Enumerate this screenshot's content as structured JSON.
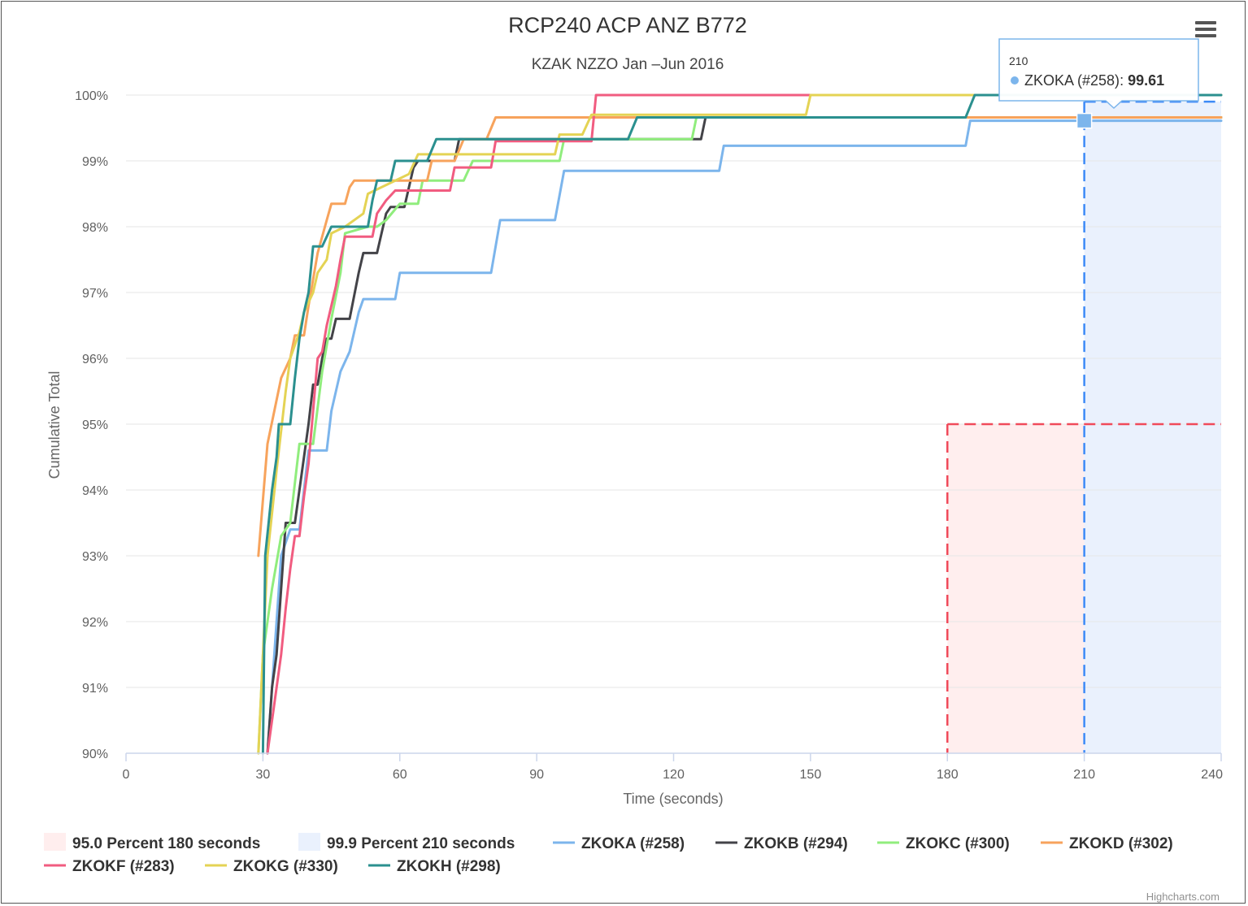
{
  "chart_data": {
    "type": "line",
    "title": "RCP240 ACP ANZ B772",
    "subtitle": "KZAK NZZO Jan –Jun 2016",
    "xlabel": "Time (seconds)",
    "ylabel": "Cumulative Total",
    "xlim": [
      0,
      240
    ],
    "ylim": [
      90,
      100
    ],
    "x_ticks": [
      "0",
      "30",
      "60",
      "90",
      "120",
      "150",
      "180",
      "210",
      "240"
    ],
    "y_ticks": [
      "90%",
      "91%",
      "92%",
      "93%",
      "94%",
      "95%",
      "96%",
      "97%",
      "98%",
      "99%",
      "100%"
    ],
    "grid": true,
    "legend_position": "bottom",
    "bands": [
      {
        "name": "95.0 Percent 180 seconds",
        "x_from": 180,
        "x_to": 240,
        "y_from": 90,
        "y_to": 95,
        "color": "#ffeeee",
        "line_color": "#f04a5a"
      },
      {
        "name": "99.9 Percent 210 seconds",
        "x_from": 210,
        "x_to": 240,
        "y_from": 90,
        "y_to": 99.9,
        "color": "#eaf1fd",
        "line_color": "#3d8af7"
      }
    ],
    "series": [
      {
        "name": "ZKOKA (#258)",
        "color": "#7cb5ec",
        "points": [
          [
            31,
            90
          ],
          [
            32,
            91
          ],
          [
            33,
            92
          ],
          [
            34,
            93
          ],
          [
            36,
            93.4
          ],
          [
            38,
            93.4
          ],
          [
            39,
            94
          ],
          [
            40,
            94.6
          ],
          [
            42,
            94.6
          ],
          [
            44,
            94.6
          ],
          [
            45,
            95.2
          ],
          [
            47,
            95.8
          ],
          [
            49,
            96.1
          ],
          [
            51,
            96.7
          ],
          [
            52,
            96.9
          ],
          [
            59,
            96.9
          ],
          [
            60,
            97.3
          ],
          [
            80,
            97.3
          ],
          [
            82,
            98.1
          ],
          [
            94,
            98.1
          ],
          [
            96,
            98.85
          ],
          [
            130,
            98.85
          ],
          [
            131,
            99.23
          ],
          [
            184,
            99.23
          ],
          [
            185,
            99.61
          ],
          [
            240,
            99.61
          ]
        ]
      },
      {
        "name": "ZKOKB (#294)",
        "color": "#434348",
        "points": [
          [
            31,
            90
          ],
          [
            32,
            91
          ],
          [
            33,
            91.5
          ],
          [
            34,
            92.5
          ],
          [
            35,
            93.5
          ],
          [
            37,
            93.5
          ],
          [
            38,
            94
          ],
          [
            39,
            94.5
          ],
          [
            40,
            95
          ],
          [
            41,
            95.6
          ],
          [
            42,
            95.6
          ],
          [
            43,
            96
          ],
          [
            44,
            96.3
          ],
          [
            45,
            96.3
          ],
          [
            46,
            96.6
          ],
          [
            49,
            96.6
          ],
          [
            51,
            97.3
          ],
          [
            52,
            97.6
          ],
          [
            55,
            97.6
          ],
          [
            56,
            97.9
          ],
          [
            57,
            98.2
          ],
          [
            58,
            98.3
          ],
          [
            61,
            98.3
          ],
          [
            62,
            98.6
          ],
          [
            63,
            98.9
          ],
          [
            64,
            99
          ],
          [
            72,
            99
          ],
          [
            73,
            99.33
          ],
          [
            126,
            99.33
          ],
          [
            127,
            99.66
          ],
          [
            240,
            99.66
          ]
        ]
      },
      {
        "name": "ZKOKC (#300)",
        "color": "#90ed7d",
        "points": [
          [
            29,
            90
          ],
          [
            30,
            91.5
          ],
          [
            32,
            92.5
          ],
          [
            34,
            93.3
          ],
          [
            36,
            93.5
          ],
          [
            38,
            94.7
          ],
          [
            41,
            94.7
          ],
          [
            43,
            95.8
          ],
          [
            45,
            96.6
          ],
          [
            47,
            97.3
          ],
          [
            48,
            97.9
          ],
          [
            53,
            98
          ],
          [
            55,
            98
          ],
          [
            57,
            98.1
          ],
          [
            60,
            98.35
          ],
          [
            64,
            98.35
          ],
          [
            65,
            98.7
          ],
          [
            69,
            98.7
          ],
          [
            74,
            98.7
          ],
          [
            76,
            99
          ],
          [
            79,
            99
          ],
          [
            81,
            99
          ],
          [
            95,
            99
          ],
          [
            96,
            99.33
          ],
          [
            124,
            99.33
          ],
          [
            125,
            99.66
          ],
          [
            240,
            99.66
          ]
        ]
      },
      {
        "name": "ZKOKD (#302)",
        "color": "#f7a35c",
        "points": [
          [
            29,
            93
          ],
          [
            31,
            94.7
          ],
          [
            34,
            95.7
          ],
          [
            36,
            96
          ],
          [
            37,
            96.35
          ],
          [
            39,
            96.35
          ],
          [
            40,
            96.8
          ],
          [
            42,
            97.6
          ],
          [
            44,
            98.1
          ],
          [
            45,
            98.35
          ],
          [
            48,
            98.35
          ],
          [
            49,
            98.6
          ],
          [
            50,
            98.7
          ],
          [
            56,
            98.7
          ],
          [
            58,
            98.7
          ],
          [
            62,
            98.7
          ],
          [
            66,
            98.7
          ],
          [
            67,
            99
          ],
          [
            72,
            99
          ],
          [
            74,
            99.33
          ],
          [
            79,
            99.33
          ],
          [
            81,
            99.66
          ],
          [
            240,
            99.66
          ]
        ]
      },
      {
        "name": "ZKOKF (#283)",
        "color": "#f15c80",
        "points": [
          [
            31,
            90
          ],
          [
            32,
            90.5
          ],
          [
            33,
            91
          ],
          [
            34,
            91.5
          ],
          [
            35,
            92.2
          ],
          [
            36,
            92.8
          ],
          [
            37,
            93.3
          ],
          [
            38,
            93.3
          ],
          [
            39,
            93.9
          ],
          [
            40,
            94.4
          ],
          [
            41,
            95.2
          ],
          [
            42,
            96
          ],
          [
            43,
            96.1
          ],
          [
            44,
            96.5
          ],
          [
            45,
            96.8
          ],
          [
            46,
            97.1
          ],
          [
            47,
            97.5
          ],
          [
            48,
            97.85
          ],
          [
            54,
            97.85
          ],
          [
            55,
            98.2
          ],
          [
            57,
            98.4
          ],
          [
            59,
            98.55
          ],
          [
            66,
            98.55
          ],
          [
            71,
            98.55
          ],
          [
            72,
            98.9
          ],
          [
            78,
            98.9
          ],
          [
            80,
            98.9
          ],
          [
            81,
            99.3
          ],
          [
            102,
            99.3
          ],
          [
            103,
            100
          ],
          [
            240,
            100
          ]
        ]
      },
      {
        "name": "ZKOKG (#330)",
        "color": "#e4d354",
        "points": [
          [
            29,
            90
          ],
          [
            31,
            93
          ],
          [
            33,
            94.3
          ],
          [
            35,
            95.5
          ],
          [
            36,
            96
          ],
          [
            38,
            96.4
          ],
          [
            39,
            96.7
          ],
          [
            41,
            97
          ],
          [
            42,
            97.3
          ],
          [
            44,
            97.5
          ],
          [
            45,
            97.9
          ],
          [
            48,
            98
          ],
          [
            52,
            98.2
          ],
          [
            53,
            98.5
          ],
          [
            56,
            98.6
          ],
          [
            62,
            98.8
          ],
          [
            64,
            99.1
          ],
          [
            78,
            99.1
          ],
          [
            94,
            99.1
          ],
          [
            95,
            99.4
          ],
          [
            100,
            99.4
          ],
          [
            102,
            99.7
          ],
          [
            149,
            99.7
          ],
          [
            150,
            100
          ],
          [
            240,
            100
          ]
        ]
      },
      {
        "name": "ZKOKH (#298)",
        "color": "#2b908f",
        "points": [
          [
            30,
            90
          ],
          [
            30.5,
            93
          ],
          [
            32,
            94
          ],
          [
            33,
            94.5
          ],
          [
            33.5,
            95
          ],
          [
            36,
            95
          ],
          [
            37,
            95.7
          ],
          [
            38,
            96.3
          ],
          [
            39,
            96.7
          ],
          [
            40,
            97
          ],
          [
            41,
            97.7
          ],
          [
            43,
            97.7
          ],
          [
            45,
            98
          ],
          [
            48,
            98
          ],
          [
            53,
            98
          ],
          [
            54,
            98.4
          ],
          [
            55,
            98.7
          ],
          [
            58,
            98.7
          ],
          [
            59,
            99
          ],
          [
            66,
            99
          ],
          [
            68,
            99.33
          ],
          [
            110,
            99.33
          ],
          [
            112,
            99.66
          ],
          [
            184,
            99.66
          ],
          [
            186,
            100
          ],
          [
            240,
            100
          ]
        ]
      }
    ],
    "tooltip": {
      "x": "210",
      "series": "ZKOKA (#258)",
      "value": "99.61"
    }
  },
  "ui": {
    "menu_icon": "hamburger-menu-icon",
    "credit": "Highcharts.com"
  }
}
